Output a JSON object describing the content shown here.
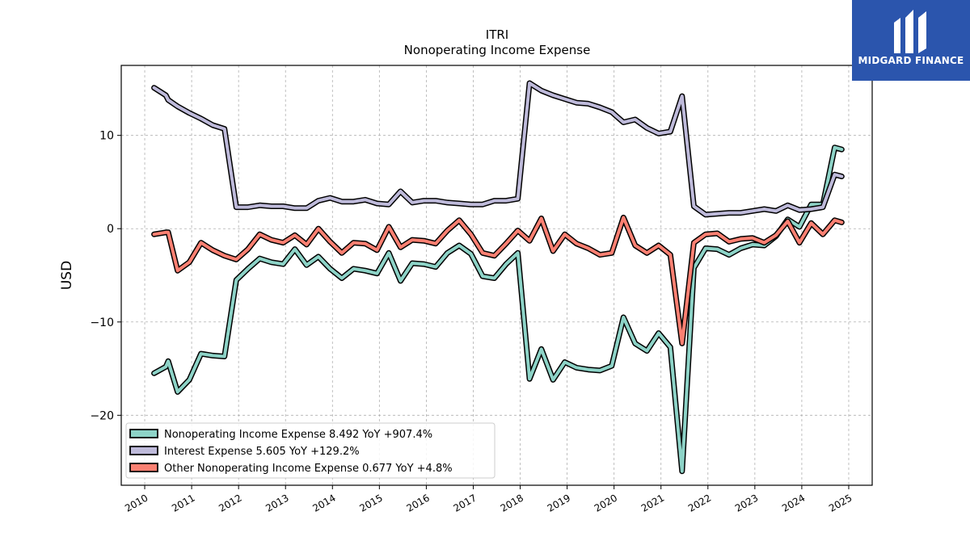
{
  "brand": {
    "name": "MIDGARD FINANCE",
    "bg": "#2b55ad"
  },
  "chart_data": {
    "type": "line",
    "title": "ITRI",
    "subtitle": "Nonoperating Income Expense",
    "ylabel": "USD",
    "xlabel": "",
    "xlim": [
      2009.5,
      2025.5
    ],
    "ylim": [
      -27.5,
      17.5
    ],
    "yticks": [
      -20,
      -10,
      0,
      10
    ],
    "ytick_labels": [
      "−20",
      "−10",
      "0",
      "10"
    ],
    "xticks": [
      2010,
      2011,
      2012,
      2013,
      2014,
      2015,
      2016,
      2017,
      2018,
      2019,
      2020,
      2021,
      2022,
      2023,
      2024,
      2025
    ],
    "xtick_labels": [
      "2010",
      "2011",
      "2012",
      "2013",
      "2014",
      "2015",
      "2016",
      "2017",
      "2018",
      "2019",
      "2020",
      "2021",
      "2022",
      "2023",
      "2024",
      "2025"
    ],
    "grid": true,
    "legend_position": "lower-left",
    "x": [
      2010.2,
      2010.45,
      2010.5,
      2010.7,
      2010.95,
      2011.2,
      2011.45,
      2011.7,
      2011.95,
      2012.2,
      2012.45,
      2012.7,
      2012.95,
      2013.2,
      2013.45,
      2013.7,
      2013.95,
      2014.2,
      2014.45,
      2014.7,
      2014.95,
      2015.2,
      2015.45,
      2015.7,
      2015.95,
      2016.2,
      2016.45,
      2016.7,
      2016.95,
      2017.2,
      2017.45,
      2017.7,
      2017.95,
      2018.2,
      2018.45,
      2018.7,
      2018.95,
      2019.2,
      2019.45,
      2019.7,
      2019.95,
      2020.2,
      2020.45,
      2020.7,
      2020.95,
      2021.2,
      2021.45,
      2021.7,
      2021.95,
      2022.2,
      2022.45,
      2022.7,
      2022.95,
      2023.2,
      2023.45,
      2023.7,
      2023.95,
      2024.2,
      2024.45,
      2024.7,
      2024.85
    ],
    "series": [
      {
        "name": "Nonoperating Income Expense",
        "legend": "Nonoperating Income Expense  8.492 YoY +907.4%",
        "color": "#8dd3c7",
        "values": [
          -15.5,
          -14.8,
          -14.2,
          -17.5,
          -16.2,
          -13.4,
          -13.6,
          -13.7,
          -5.5,
          -4.3,
          -3.2,
          -3.6,
          -3.8,
          -2.2,
          -3.9,
          -3.0,
          -4.3,
          -5.3,
          -4.3,
          -4.5,
          -4.8,
          -2.6,
          -5.6,
          -3.7,
          -3.8,
          -4.1,
          -2.6,
          -1.8,
          -2.7,
          -5.1,
          -5.3,
          -3.8,
          -2.6,
          -16.1,
          -12.9,
          -16.2,
          -14.3,
          -14.9,
          -15.1,
          -15.2,
          -14.7,
          -9.5,
          -12.3,
          -13.1,
          -11.2,
          -12.7,
          -26.0,
          -4.2,
          -2.1,
          -2.2,
          -2.8,
          -2.1,
          -1.7,
          -1.8,
          -0.8,
          1.0,
          0.2,
          2.6,
          2.6,
          8.7,
          8.492
        ]
      },
      {
        "name": "Interest Expense",
        "legend": "Interest Expense  5.605 YoY +129.2%",
        "color": "#bebada",
        "values": [
          15.1,
          14.3,
          13.8,
          13.1,
          12.4,
          11.8,
          11.1,
          10.7,
          2.3,
          2.3,
          2.5,
          2.4,
          2.4,
          2.2,
          2.2,
          3.0,
          3.3,
          2.9,
          2.9,
          3.1,
          2.7,
          2.6,
          4.0,
          2.8,
          3.0,
          3.0,
          2.8,
          2.7,
          2.6,
          2.6,
          3.0,
          3.0,
          3.2,
          15.6,
          14.8,
          14.3,
          13.9,
          13.5,
          13.4,
          13.0,
          12.5,
          11.4,
          11.7,
          10.8,
          10.2,
          10.4,
          14.2,
          2.4,
          1.5,
          1.6,
          1.7,
          1.7,
          1.9,
          2.1,
          1.9,
          2.5,
          2.0,
          2.1,
          2.3,
          5.8,
          5.605
        ]
      },
      {
        "name": "Other Nonoperating Income Expense",
        "legend": "Other Nonoperating Income Expense  0.677 YoY +4.8%",
        "color": "#fb8072",
        "values": [
          -0.6,
          -0.4,
          -0.4,
          -4.5,
          -3.6,
          -1.5,
          -2.3,
          -2.9,
          -3.3,
          -2.2,
          -0.6,
          -1.2,
          -1.5,
          -0.7,
          -1.7,
          0.0,
          -1.4,
          -2.6,
          -1.5,
          -1.6,
          -2.3,
          0.2,
          -2.0,
          -1.2,
          -1.3,
          -1.6,
          -0.2,
          0.9,
          -0.6,
          -2.6,
          -2.9,
          -1.6,
          -0.2,
          -1.3,
          1.1,
          -2.4,
          -0.6,
          -1.6,
          -2.1,
          -2.8,
          -2.6,
          1.2,
          -1.8,
          -2.6,
          -1.8,
          -2.8,
          -12.3,
          -1.5,
          -0.6,
          -0.5,
          -1.4,
          -1.1,
          -1.0,
          -1.5,
          -0.7,
          0.8,
          -1.5,
          0.6,
          -0.6,
          0.9,
          0.677
        ]
      }
    ]
  }
}
